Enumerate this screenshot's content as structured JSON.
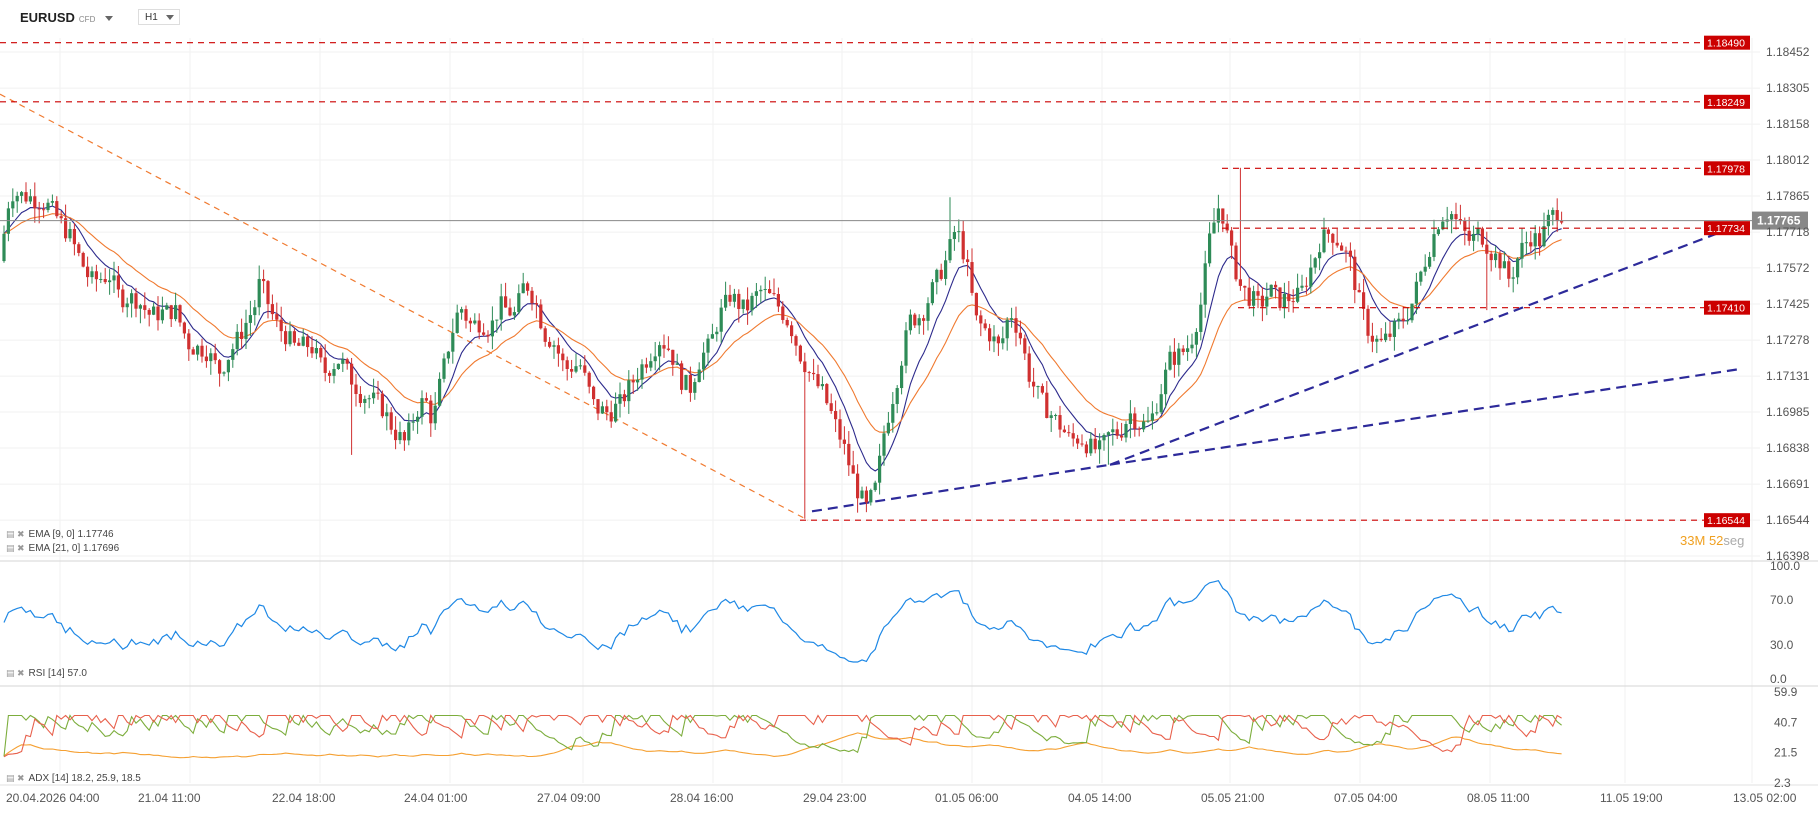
{
  "header": {
    "symbol": "EURUSD",
    "symbol_tag": "CFD",
    "timeframe": "H1"
  },
  "countdown": {
    "minutes": "33",
    "minutes_unit": "M",
    "seconds": "52",
    "seconds_unit": "seg"
  },
  "chart_data": [
    {
      "type": "candlestick",
      "panel": "price",
      "y_ticks": [
        "1.18452",
        "1.18305",
        "1.18158",
        "1.18012",
        "1.17865",
        "1.17718",
        "1.17572",
        "1.17425",
        "1.17278",
        "1.17131",
        "1.16985",
        "1.16838",
        "1.16691",
        "1.16544",
        "1.16398"
      ],
      "ylim": [
        1.16398,
        1.18452
      ],
      "current_price": "1.17765",
      "current_price_value": 1.17765,
      "levels": [
        {
          "label": "1.18490",
          "value": 1.1849
        },
        {
          "label": "1.18249",
          "value": 1.18249
        },
        {
          "label": "1.17978",
          "value": 1.17978
        },
        {
          "label": "1.17734",
          "value": 1.17734
        },
        {
          "label": "1.17410",
          "value": 1.1741
        },
        {
          "label": "1.16544",
          "value": 1.16544
        }
      ],
      "level_color": "#cc0000",
      "indicators": [
        {
          "name": "EMA [9, 0]",
          "value": "1.17746",
          "color": "#2d2a8c"
        },
        {
          "name": "EMA [21, 0]",
          "value": "1.17696",
          "color": "#f07a30"
        }
      ],
      "candles_ohlc_anchor": [
        [
          0,
          1.176
        ],
        [
          10,
          1.1788
        ],
        [
          30,
          1.1786
        ],
        [
          50,
          1.1782
        ],
        [
          70,
          1.177
        ],
        [
          90,
          1.1752
        ],
        [
          110,
          1.1754
        ],
        [
          120,
          1.1745
        ],
        [
          135,
          1.1745
        ],
        [
          150,
          1.1738
        ],
        [
          175,
          1.174
        ],
        [
          190,
          1.1725
        ],
        [
          205,
          1.1724
        ],
        [
          220,
          1.1715
        ],
        [
          240,
          1.173
        ],
        [
          255,
          1.1742
        ],
        [
          260,
          1.1752
        ],
        [
          275,
          1.1735
        ],
        [
          295,
          1.1725
        ],
        [
          310,
          1.1726
        ],
        [
          325,
          1.1715
        ],
        [
          340,
          1.172
        ],
        [
          360,
          1.1706
        ],
        [
          380,
          1.1702
        ],
        [
          395,
          1.169
        ],
        [
          405,
          1.1686
        ],
        [
          415,
          1.1698
        ],
        [
          425,
          1.1704
        ],
        [
          433,
          1.1694
        ],
        [
          440,
          1.171
        ],
        [
          450,
          1.1728
        ],
        [
          460,
          1.1742
        ],
        [
          470,
          1.1734
        ],
        [
          480,
          1.1735
        ],
        [
          490,
          1.1732
        ],
        [
          500,
          1.1742
        ],
        [
          515,
          1.1738
        ],
        [
          525,
          1.1752
        ],
        [
          535,
          1.1744
        ],
        [
          545,
          1.173
        ],
        [
          555,
          1.1726
        ],
        [
          565,
          1.1716
        ],
        [
          580,
          1.1718
        ],
        [
          595,
          1.17
        ],
        [
          610,
          1.1698
        ],
        [
          620,
          1.1702
        ],
        [
          640,
          1.1716
        ],
        [
          660,
          1.1728
        ],
        [
          670,
          1.1724
        ],
        [
          680,
          1.1712
        ],
        [
          690,
          1.1708
        ],
        [
          700,
          1.172
        ],
        [
          710,
          1.1726
        ],
        [
          720,
          1.1738
        ],
        [
          730,
          1.1746
        ],
        [
          745,
          1.174
        ],
        [
          760,
          1.1748
        ],
        [
          775,
          1.1744
        ],
        [
          790,
          1.1734
        ],
        [
          800,
          1.1722
        ],
        [
          812,
          1.1712
        ],
        [
          822,
          1.1707
        ],
        [
          834,
          1.1695
        ],
        [
          844,
          1.1684
        ],
        [
          856,
          1.1668
        ],
        [
          866,
          1.1659
        ],
        [
          876,
          1.1668
        ],
        [
          884,
          1.169
        ],
        [
          896,
          1.171
        ],
        [
          910,
          1.1736
        ],
        [
          922,
          1.1738
        ],
        [
          936,
          1.1752
        ],
        [
          946,
          1.176
        ],
        [
          956,
          1.1774
        ],
        [
          966,
          1.176
        ],
        [
          976,
          1.1736
        ],
        [
          990,
          1.173
        ],
        [
          1000,
          1.1724
        ],
        [
          1010,
          1.174
        ],
        [
          1020,
          1.173
        ],
        [
          1030,
          1.1712
        ],
        [
          1040,
          1.1704
        ],
        [
          1050,
          1.1698
        ],
        [
          1060,
          1.1693
        ],
        [
          1070,
          1.1687
        ],
        [
          1080,
          1.1688
        ],
        [
          1090,
          1.1684
        ],
        [
          1100,
          1.1683
        ],
        [
          1110,
          1.169
        ],
        [
          1120,
          1.169
        ],
        [
          1130,
          1.1698
        ],
        [
          1140,
          1.1693
        ],
        [
          1150,
          1.1694
        ],
        [
          1160,
          1.1706
        ],
        [
          1170,
          1.172
        ],
        [
          1180,
          1.1722
        ],
        [
          1190,
          1.1726
        ],
        [
          1200,
          1.174
        ],
        [
          1210,
          1.177
        ],
        [
          1220,
          1.1784
        ],
        [
          1230,
          1.1765
        ],
        [
          1240,
          1.175
        ],
        [
          1250,
          1.1745
        ],
        [
          1260,
          1.1742
        ],
        [
          1270,
          1.1748
        ],
        [
          1280,
          1.1744
        ],
        [
          1290,
          1.1745
        ],
        [
          1300,
          1.1746
        ],
        [
          1310,
          1.1756
        ],
        [
          1320,
          1.1768
        ],
        [
          1330,
          1.1772
        ],
        [
          1340,
          1.1767
        ],
        [
          1350,
          1.176
        ],
        [
          1360,
          1.1742
        ],
        [
          1370,
          1.173
        ],
        [
          1380,
          1.1726
        ],
        [
          1390,
          1.173
        ],
        [
          1400,
          1.1735
        ],
        [
          1410,
          1.174
        ],
        [
          1420,
          1.1754
        ],
        [
          1430,
          1.1766
        ],
        [
          1440,
          1.1778
        ],
        [
          1450,
          1.178
        ],
        [
          1460,
          1.1774
        ],
        [
          1470,
          1.1768
        ],
        [
          1480,
          1.1772
        ],
        [
          1490,
          1.1764
        ],
        [
          1500,
          1.176
        ],
        [
          1510,
          1.1752
        ],
        [
          1520,
          1.1764
        ],
        [
          1530,
          1.177
        ],
        [
          1540,
          1.1768
        ],
        [
          1550,
          1.1778
        ],
        [
          1560,
          1.1781
        ],
        [
          1565,
          1.1776
        ]
      ]
    },
    {
      "type": "line",
      "panel": "rsi",
      "indicator": {
        "name": "RSI [14]",
        "value": "57.0",
        "color": "#1e88e5"
      },
      "y_ticks": [
        "100.0",
        "70.0",
        "30.0",
        "0.0"
      ],
      "ylim": [
        0,
        100
      ]
    },
    {
      "type": "line",
      "panel": "adx",
      "indicator": {
        "name": "ADX [14]",
        "value": "18.2, 25.9, 18.5"
      },
      "series_colors": [
        "#f5a032",
        "#7cad3c",
        "#e8604c"
      ],
      "y_ticks": [
        "59.9",
        "40.7",
        "21.5",
        "2.3"
      ],
      "ylim": [
        2.3,
        59.9
      ]
    }
  ],
  "x_axis": {
    "labels": [
      "20.04.2026 04:00",
      "21.04 11:00",
      "22.04 18:00",
      "24.04 01:00",
      "27.04 09:00",
      "28.04 16:00",
      "29.04 23:00",
      "01.05 06:00",
      "04.05 14:00",
      "05.05 21:00",
      "07.05 04:00",
      "08.05 11:00",
      "11.05 19:00",
      "13.05 02:00"
    ]
  }
}
